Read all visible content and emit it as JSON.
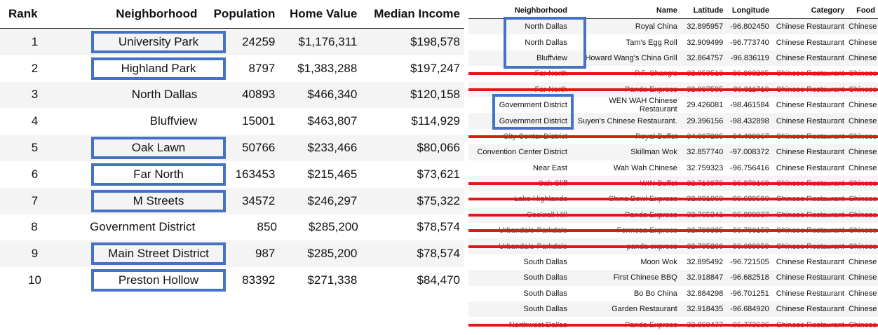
{
  "left_table": {
    "headers": [
      "Rank",
      "Neighborhood",
      "Population",
      "Home Value",
      "Median Income"
    ],
    "rows": [
      {
        "rank": "1",
        "neighborhood": "University Park",
        "population": "24259",
        "home_value": "$1,176,311",
        "median_income": "$198,578",
        "highlighted": true
      },
      {
        "rank": "2",
        "neighborhood": "Highland Park",
        "population": "8797",
        "home_value": "$1,383,288",
        "median_income": "$197,247",
        "highlighted": true
      },
      {
        "rank": "3",
        "neighborhood": "North Dallas",
        "population": "40893",
        "home_value": "$466,340",
        "median_income": "$120,158",
        "highlighted": false
      },
      {
        "rank": "4",
        "neighborhood": "Bluffview",
        "population": "15001",
        "home_value": "$463,807",
        "median_income": "$114,929",
        "highlighted": false
      },
      {
        "rank": "5",
        "neighborhood": "Oak Lawn",
        "population": "50766",
        "home_value": "$233,466",
        "median_income": "$80,066",
        "highlighted": true
      },
      {
        "rank": "6",
        "neighborhood": "Far North",
        "population": "163453",
        "home_value": "$215,465",
        "median_income": "$73,621",
        "highlighted": true
      },
      {
        "rank": "7",
        "neighborhood": "M Streets",
        "population": "34572",
        "home_value": "$246,297",
        "median_income": "$75,322",
        "highlighted": true
      },
      {
        "rank": "8",
        "neighborhood": "Government District",
        "population": "850",
        "home_value": "$285,200",
        "median_income": "$78,574",
        "highlighted": false
      },
      {
        "rank": "9",
        "neighborhood": "Main Street District",
        "population": "987",
        "home_value": "$285,200",
        "median_income": "$78,574",
        "highlighted": true
      },
      {
        "rank": "10",
        "neighborhood": "Preston Hollow",
        "population": "83392",
        "home_value": "$271,338",
        "median_income": "$84,470",
        "highlighted": true
      }
    ]
  },
  "right_table": {
    "headers": [
      "Neighborhood",
      "Name",
      "Latitude",
      "Longitude",
      "Category",
      "Food"
    ],
    "rows": [
      {
        "neighborhood": "North Dallas",
        "name": "Royal China",
        "latitude": "32.895957",
        "longitude": "-96.802450",
        "category": "Chinese Restaurant",
        "food": "Chinese",
        "struck": false
      },
      {
        "neighborhood": "North Dallas",
        "name": "Tam's Egg Roll",
        "latitude": "32.909499",
        "longitude": "-96.773740",
        "category": "Chinese Restaurant",
        "food": "Chinese",
        "struck": false
      },
      {
        "neighborhood": "Bluffview",
        "name": "Howard Wang's China Grill",
        "latitude": "32.864757",
        "longitude": "-96.836119",
        "category": "Chinese Restaurant",
        "food": "Chinese",
        "struck": false
      },
      {
        "neighborhood": "Far North",
        "name": "P.F. Chang's",
        "latitude": "32.958513",
        "longitude": "-96.808295",
        "category": "Chinese Restaurant",
        "food": "Chinese",
        "struck": true
      },
      {
        "neighborhood": "Far North",
        "name": "Panda Express",
        "latitude": "32.987595",
        "longitude": "-96.811719",
        "category": "Chinese Restaurant",
        "food": "Chinese",
        "struck": true
      },
      {
        "neighborhood": "Government District",
        "name": "WEN WAH Chinese Restaurant",
        "latitude": "29.426081",
        "longitude": "-98.461584",
        "category": "Chinese Restaurant",
        "food": "Chinese",
        "struck": false
      },
      {
        "neighborhood": "Government District",
        "name": "Suyen's Chinese Restaurant.",
        "latitude": "29.396156",
        "longitude": "-98.432898",
        "category": "Chinese Restaurant",
        "food": "Chinese",
        "struck": false
      },
      {
        "neighborhood": "City Center District",
        "name": "Royal Buffet",
        "latitude": "34.097205",
        "longitude": "-94.409967",
        "category": "Chinese Restaurant",
        "food": "Chinese",
        "struck": true
      },
      {
        "neighborhood": "Convention Center District",
        "name": "Skillman Wok",
        "latitude": "32.857740",
        "longitude": "-97.008372",
        "category": "Chinese Restaurant",
        "food": "Chinese",
        "struck": false
      },
      {
        "neighborhood": "Near East",
        "name": "Wah Wah Chinese",
        "latitude": "32.759323",
        "longitude": "-96.756416",
        "category": "Chinese Restaurant",
        "food": "Chinese",
        "struck": false
      },
      {
        "neighborhood": "Oak Cliff",
        "name": "WIN Buffet",
        "latitude": "32.716979",
        "longitude": "-96.879169",
        "category": "Chinese Restaurant",
        "food": "Chinese",
        "struck": true
      },
      {
        "neighborhood": "Lake Highlands",
        "name": "China Bowl Express",
        "latitude": "32.881060",
        "longitude": "-96.689590",
        "category": "Chinese Restaurant",
        "food": "Chinese",
        "struck": true
      },
      {
        "neighborhood": "Cockrell Hill",
        "name": "Panda Express",
        "latitude": "32.765341",
        "longitude": "-96.898937",
        "category": "Chinese Restaurant",
        "food": "Chinese",
        "struck": true
      },
      {
        "neighborhood": "Urbandale-Parkdale",
        "name": "Formosa Express",
        "latitude": "32.799385",
        "longitude": "-96.700153",
        "category": "Chinese Restaurant",
        "food": "Chinese",
        "struck": true
      },
      {
        "neighborhood": "Urbandale-Parkdale",
        "name": "panda express",
        "latitude": "32.795260",
        "longitude": "-96.689959",
        "category": "Chinese Restaurant",
        "food": "Chinese",
        "struck": true
      },
      {
        "neighborhood": "South Dallas",
        "name": "Moon Wok",
        "latitude": "32.895492",
        "longitude": "-96.721505",
        "category": "Chinese Restaurant",
        "food": "Chinese",
        "struck": false
      },
      {
        "neighborhood": "South Dallas",
        "name": "First Chinese BBQ",
        "latitude": "32.918847",
        "longitude": "-96.682518",
        "category": "Chinese Restaurant",
        "food": "Chinese",
        "struck": false
      },
      {
        "neighborhood": "South Dallas",
        "name": "Bo Bo China",
        "latitude": "32.884298",
        "longitude": "-96.701251",
        "category": "Chinese Restaurant",
        "food": "Chinese",
        "struck": false
      },
      {
        "neighborhood": "South Dallas",
        "name": "Garden Restaurant",
        "latitude": "32.918435",
        "longitude": "-96.684920",
        "category": "Chinese Restaurant",
        "food": "Chinese",
        "struck": false
      },
      {
        "neighborhood": "Northwest Dallas",
        "name": "Panda Express",
        "latitude": "32.869477",
        "longitude": "-96.773636",
        "category": "Chinese Restaurant",
        "food": "Chinese",
        "struck": true
      }
    ]
  },
  "colors": {
    "highlight_box": "#4472c4",
    "strike_line": "#e01818",
    "row_stripe": "#f4f4f4"
  }
}
